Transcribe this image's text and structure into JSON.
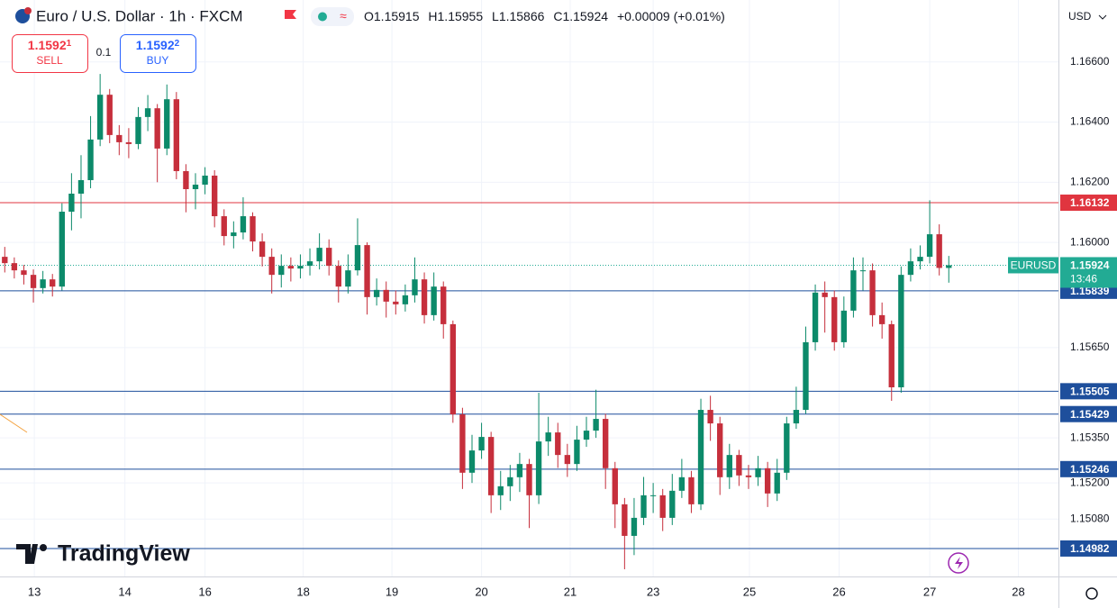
{
  "ui": {
    "title": "Euro / U.S. Dollar · 1h · FXCM",
    "ohlc_labels": [
      "O",
      "H",
      "L",
      "C"
    ],
    "change": "+0.00009 (+0.01%)",
    "sell": {
      "label": "SELL",
      "price": "1.1592",
      "pip": "1"
    },
    "spread": "0.1",
    "buy": {
      "label": "BUY",
      "price": "1.1592",
      "pip": "2"
    },
    "currency": "USD",
    "logo": "TradingView"
  },
  "chart_data": {
    "type": "candlestick",
    "up_color": "#0c8a6a",
    "down_color": "#c62f3c",
    "grid": true,
    "xlim": [
      0,
      111
    ],
    "xticks": [
      {
        "value": 3.6,
        "label": "13"
      },
      {
        "value": 13.1,
        "label": "14"
      },
      {
        "value": 21.5,
        "label": "16"
      },
      {
        "value": 31.8,
        "label": "18"
      },
      {
        "value": 41.1,
        "label": "19"
      },
      {
        "value": 50.5,
        "label": "20"
      },
      {
        "value": 59.8,
        "label": "21"
      },
      {
        "value": 68.5,
        "label": "23"
      },
      {
        "value": 78.6,
        "label": "25"
      },
      {
        "value": 88.0,
        "label": "26"
      },
      {
        "value": 97.5,
        "label": "27"
      },
      {
        "value": 106.8,
        "label": "28"
      }
    ],
    "ylim": [
      1.14889,
      1.16806
    ],
    "yticks": [
      {
        "value": 1.166,
        "label": "1.16600"
      },
      {
        "value": 1.164,
        "label": "1.16400"
      },
      {
        "value": 1.162,
        "label": "1.16200"
      },
      {
        "value": 1.16,
        "label": "1.16000"
      },
      {
        "value": 1.1565,
        "label": "1.15650"
      },
      {
        "value": 1.1535,
        "label": "1.15350"
      },
      {
        "value": 1.152,
        "label": "1.15200"
      },
      {
        "value": 1.1508,
        "label": "1.15080"
      }
    ],
    "levels": [
      {
        "value": 1.16132,
        "color": "#e0353f"
      },
      {
        "value": 1.15839,
        "color": "#1e4f9c"
      },
      {
        "value": 1.15505,
        "color": "#1e4f9c"
      },
      {
        "value": 1.15429,
        "color": "#1e4f9c"
      },
      {
        "value": 1.15246,
        "color": "#1e4f9c"
      },
      {
        "value": 1.14982,
        "color": "#1e4f9c"
      }
    ],
    "last_price": {
      "symbol": "EURUSD",
      "value": 1.15924,
      "countdown": "13:46",
      "color": "#22ab94"
    },
    "candles": [
      [
        1.15952,
        1.15985,
        1.159,
        1.15931
      ],
      [
        1.15931,
        1.1595,
        1.1588,
        1.15907
      ],
      [
        1.15907,
        1.15925,
        1.1586,
        1.15892
      ],
      [
        1.15892,
        1.1591,
        1.158,
        1.15848
      ],
      [
        1.15848,
        1.15905,
        1.1583,
        1.15877
      ],
      [
        1.15877,
        1.15895,
        1.1582,
        1.15853
      ],
      [
        1.15853,
        1.1613,
        1.1584,
        1.16102
      ],
      [
        1.16102,
        1.1623,
        1.1604,
        1.16162
      ],
      [
        1.16162,
        1.1629,
        1.1608,
        1.16207
      ],
      [
        1.16207,
        1.1642,
        1.1618,
        1.16342
      ],
      [
        1.16342,
        1.1656,
        1.1632,
        1.16491
      ],
      [
        1.16491,
        1.1651,
        1.1633,
        1.16357
      ],
      [
        1.16357,
        1.1639,
        1.1629,
        1.16333
      ],
      [
        1.16333,
        1.1638,
        1.1628,
        1.16327
      ],
      [
        1.16327,
        1.1645,
        1.1631,
        1.16417
      ],
      [
        1.16417,
        1.1649,
        1.1637,
        1.16446
      ],
      [
        1.16446,
        1.1646,
        1.162,
        1.16312
      ],
      [
        1.16312,
        1.16525,
        1.1629,
        1.16476
      ],
      [
        1.16476,
        1.165,
        1.1621,
        1.16237
      ],
      [
        1.16237,
        1.1626,
        1.161,
        1.16177
      ],
      [
        1.16177,
        1.1623,
        1.1611,
        1.16192
      ],
      [
        1.16192,
        1.1625,
        1.1616,
        1.16222
      ],
      [
        1.16222,
        1.1624,
        1.1605,
        1.16087
      ],
      [
        1.16087,
        1.1611,
        1.1599,
        1.16021
      ],
      [
        1.16021,
        1.1607,
        1.1598,
        1.16033
      ],
      [
        1.16033,
        1.1615,
        1.1601,
        1.16087
      ],
      [
        1.16087,
        1.161,
        1.1597,
        1.16003
      ],
      [
        1.16003,
        1.1603,
        1.1592,
        1.15952
      ],
      [
        1.15952,
        1.1598,
        1.1583,
        1.15892
      ],
      [
        1.15892,
        1.1596,
        1.1585,
        1.15922
      ],
      [
        1.15922,
        1.1595,
        1.1587,
        1.15913
      ],
      [
        1.15913,
        1.1596,
        1.1588,
        1.15922
      ],
      [
        1.15922,
        1.1598,
        1.1589,
        1.15937
      ],
      [
        1.15937,
        1.1603,
        1.1591,
        1.15982
      ],
      [
        1.15982,
        1.1601,
        1.1589,
        1.15922
      ],
      [
        1.15922,
        1.1594,
        1.158,
        1.15853
      ],
      [
        1.15853,
        1.1596,
        1.1583,
        1.15907
      ],
      [
        1.15907,
        1.1608,
        1.1589,
        1.15991
      ],
      [
        1.15991,
        1.16,
        1.1576,
        1.15818
      ],
      [
        1.15818,
        1.1588,
        1.1579,
        1.15842
      ],
      [
        1.15842,
        1.1587,
        1.1575,
        1.15803
      ],
      [
        1.15803,
        1.1584,
        1.1576,
        1.15794
      ],
      [
        1.15794,
        1.1586,
        1.1577,
        1.15824
      ],
      [
        1.15824,
        1.1595,
        1.158,
        1.15877
      ],
      [
        1.15877,
        1.159,
        1.1573,
        1.15758
      ],
      [
        1.15758,
        1.159,
        1.1574,
        1.15853
      ],
      [
        1.15853,
        1.1587,
        1.1568,
        1.15728
      ],
      [
        1.15728,
        1.1574,
        1.154,
        1.15428
      ],
      [
        1.15428,
        1.1545,
        1.1518,
        1.15234
      ],
      [
        1.15234,
        1.1536,
        1.152,
        1.15308
      ],
      [
        1.15308,
        1.154,
        1.1528,
        1.15353
      ],
      [
        1.15353,
        1.1537,
        1.151,
        1.15159
      ],
      [
        1.15159,
        1.1524,
        1.1511,
        1.15189
      ],
      [
        1.15189,
        1.1526,
        1.1514,
        1.15219
      ],
      [
        1.15219,
        1.153,
        1.1517,
        1.15263
      ],
      [
        1.15263,
        1.1528,
        1.1505,
        1.15159
      ],
      [
        1.15159,
        1.155,
        1.1513,
        1.15338
      ],
      [
        1.15338,
        1.1542,
        1.1529,
        1.15368
      ],
      [
        1.15368,
        1.154,
        1.1525,
        1.15293
      ],
      [
        1.15293,
        1.1533,
        1.1522,
        1.15263
      ],
      [
        1.15263,
        1.1539,
        1.1524,
        1.15344
      ],
      [
        1.15344,
        1.1542,
        1.1532,
        1.15374
      ],
      [
        1.15374,
        1.1551,
        1.1535,
        1.15413
      ],
      [
        1.15413,
        1.1543,
        1.1518,
        1.15249
      ],
      [
        1.15249,
        1.1527,
        1.1505,
        1.15129
      ],
      [
        1.15129,
        1.1515,
        1.14913,
        1.15024
      ],
      [
        1.15024,
        1.1515,
        1.1496,
        1.15084
      ],
      [
        1.15084,
        1.1522,
        1.1506,
        1.15159
      ],
      [
        1.15159,
        1.152,
        1.151,
        1.15159
      ],
      [
        1.15159,
        1.1518,
        1.1504,
        1.15084
      ],
      [
        1.15084,
        1.1523,
        1.1506,
        1.15174
      ],
      [
        1.15174,
        1.1528,
        1.1515,
        1.15219
      ],
      [
        1.15219,
        1.1524,
        1.151,
        1.15129
      ],
      [
        1.15129,
        1.1548,
        1.1511,
        1.15443
      ],
      [
        1.15443,
        1.1549,
        1.1534,
        1.15398
      ],
      [
        1.15398,
        1.1542,
        1.1516,
        1.15219
      ],
      [
        1.15219,
        1.1533,
        1.1518,
        1.15293
      ],
      [
        1.15293,
        1.1531,
        1.1519,
        1.15225
      ],
      [
        1.15225,
        1.1526,
        1.1518,
        1.15219
      ],
      [
        1.15219,
        1.1529,
        1.1519,
        1.15249
      ],
      [
        1.15249,
        1.1527,
        1.1512,
        1.15165
      ],
      [
        1.15165,
        1.1528,
        1.1514,
        1.15234
      ],
      [
        1.15234,
        1.1542,
        1.1521,
        1.15398
      ],
      [
        1.15398,
        1.1552,
        1.1538,
        1.15443
      ],
      [
        1.15443,
        1.1572,
        1.1543,
        1.15668
      ],
      [
        1.15668,
        1.1586,
        1.1564,
        1.15833
      ],
      [
        1.15833,
        1.1587,
        1.157,
        1.15818
      ],
      [
        1.15818,
        1.1584,
        1.1564,
        1.15668
      ],
      [
        1.15668,
        1.1582,
        1.1565,
        1.15773
      ],
      [
        1.15773,
        1.1595,
        1.1575,
        1.15907
      ],
      [
        1.15907,
        1.1595,
        1.1584,
        1.15907
      ],
      [
        1.15907,
        1.1593,
        1.1572,
        1.15758
      ],
      [
        1.15758,
        1.158,
        1.1568,
        1.15728
      ],
      [
        1.15728,
        1.1574,
        1.15473,
        1.15518
      ],
      [
        1.15518,
        1.1592,
        1.155,
        1.15892
      ],
      [
        1.15892,
        1.1598,
        1.1587,
        1.15937
      ],
      [
        1.15937,
        1.1599,
        1.1591,
        1.15952
      ],
      [
        1.15952,
        1.1614,
        1.1593,
        1.16027
      ],
      [
        1.16027,
        1.1606,
        1.1589,
        1.15915
      ],
      [
        1.15915,
        1.15955,
        1.15866,
        1.15924
      ]
    ]
  }
}
